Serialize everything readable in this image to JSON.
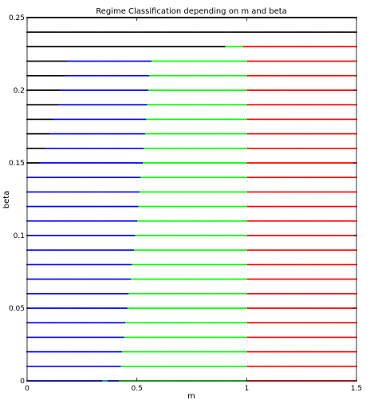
{
  "chart_data": {
    "type": "scatter",
    "title": "Regime Classification depending on m and beta",
    "xlabel": "m",
    "ylabel": "beta",
    "xlim": [
      0,
      1.5
    ],
    "ylim": [
      0,
      0.25
    ],
    "xticks": [
      "0",
      "0.5",
      "1",
      "1.5"
    ],
    "yticks": [
      "0",
      "0.05",
      "0.1",
      "0.15",
      "0.2",
      "0.25"
    ],
    "grid": false,
    "legend": "none",
    "colors": {
      "black": "#000000",
      "blue": "#0000ff",
      "cyan": "#00ffff",
      "green": "#00ff00",
      "red": "#ff0000"
    },
    "x_step": 0.005,
    "rows": [
      {
        "beta": 0.0,
        "segments": [
          [
            "black",
            0.0,
            0.0
          ],
          [
            "blue",
            0.005,
            0.34
          ],
          [
            "cyan",
            0.345,
            0.365
          ],
          [
            "blue",
            0.37,
            0.415
          ],
          [
            "green",
            0.42,
            1.0
          ],
          [
            "red",
            1.005,
            1.5
          ]
        ]
      },
      {
        "beta": 0.01,
        "segments": [
          [
            "black",
            0.0,
            0.0
          ],
          [
            "blue",
            0.005,
            0.425
          ],
          [
            "green",
            0.43,
            1.0
          ],
          [
            "red",
            1.005,
            1.5
          ]
        ]
      },
      {
        "beta": 0.02,
        "segments": [
          [
            "black",
            0.0,
            0.0
          ],
          [
            "blue",
            0.005,
            0.43
          ],
          [
            "green",
            0.435,
            1.0
          ],
          [
            "red",
            1.005,
            1.5
          ]
        ]
      },
      {
        "beta": 0.03,
        "segments": [
          [
            "black",
            0.0,
            0.0
          ],
          [
            "blue",
            0.005,
            0.44
          ],
          [
            "green",
            0.445,
            1.0
          ],
          [
            "red",
            1.005,
            1.5
          ]
        ]
      },
      {
        "beta": 0.04,
        "segments": [
          [
            "black",
            0.0,
            0.0
          ],
          [
            "blue",
            0.005,
            0.445
          ],
          [
            "green",
            0.45,
            1.0
          ],
          [
            "red",
            1.005,
            1.5
          ]
        ]
      },
      {
        "beta": 0.05,
        "segments": [
          [
            "black",
            0.0,
            0.0
          ],
          [
            "blue",
            0.005,
            0.455
          ],
          [
            "green",
            0.46,
            1.0
          ],
          [
            "red",
            1.005,
            1.5
          ]
        ]
      },
      {
        "beta": 0.06,
        "segments": [
          [
            "black",
            0.0,
            0.0
          ],
          [
            "blue",
            0.005,
            0.46
          ],
          [
            "green",
            0.465,
            1.0
          ],
          [
            "red",
            1.005,
            1.5
          ]
        ]
      },
      {
        "beta": 0.07,
        "segments": [
          [
            "black",
            0.0,
            0.0
          ],
          [
            "blue",
            0.005,
            0.47
          ],
          [
            "green",
            0.475,
            1.0
          ],
          [
            "red",
            1.005,
            1.5
          ]
        ]
      },
      {
        "beta": 0.08,
        "segments": [
          [
            "black",
            0.0,
            0.0
          ],
          [
            "blue",
            0.005,
            0.475
          ],
          [
            "green",
            0.48,
            1.0
          ],
          [
            "red",
            1.005,
            1.5
          ]
        ]
      },
      {
        "beta": 0.09,
        "segments": [
          [
            "black",
            0.0,
            0.0
          ],
          [
            "blue",
            0.005,
            0.485
          ],
          [
            "green",
            0.49,
            1.0
          ],
          [
            "red",
            1.005,
            1.5
          ]
        ]
      },
      {
        "beta": 0.1,
        "segments": [
          [
            "black",
            0.0,
            0.0
          ],
          [
            "blue",
            0.005,
            0.49
          ],
          [
            "green",
            0.495,
            1.0
          ],
          [
            "red",
            1.005,
            1.5
          ]
        ]
      },
      {
        "beta": 0.11,
        "segments": [
          [
            "black",
            0.0,
            0.0
          ],
          [
            "blue",
            0.005,
            0.5
          ],
          [
            "green",
            0.505,
            1.0
          ],
          [
            "red",
            1.005,
            1.5
          ]
        ]
      },
      {
        "beta": 0.12,
        "segments": [
          [
            "black",
            0.0,
            0.0
          ],
          [
            "blue",
            0.005,
            0.505
          ],
          [
            "green",
            0.51,
            1.0
          ],
          [
            "red",
            1.005,
            1.5
          ]
        ]
      },
      {
        "beta": 0.13,
        "segments": [
          [
            "black",
            0.0,
            0.0
          ],
          [
            "blue",
            0.005,
            0.51
          ],
          [
            "green",
            0.515,
            1.0
          ],
          [
            "red",
            1.005,
            1.5
          ]
        ]
      },
      {
        "beta": 0.14,
        "segments": [
          [
            "black",
            0.0,
            0.0
          ],
          [
            "blue",
            0.005,
            0.515
          ],
          [
            "green",
            0.52,
            1.0
          ],
          [
            "red",
            1.005,
            1.5
          ]
        ]
      },
      {
        "beta": 0.15,
        "segments": [
          [
            "black",
            0.0,
            0.055
          ],
          [
            "blue",
            0.06,
            0.525
          ],
          [
            "green",
            0.53,
            1.0
          ],
          [
            "red",
            1.005,
            1.5
          ]
        ]
      },
      {
        "beta": 0.16,
        "segments": [
          [
            "black",
            0.0,
            0.08
          ],
          [
            "blue",
            0.085,
            0.53
          ],
          [
            "green",
            0.535,
            1.0
          ],
          [
            "red",
            1.005,
            1.5
          ]
        ]
      },
      {
        "beta": 0.17,
        "segments": [
          [
            "black",
            0.0,
            0.1
          ],
          [
            "blue",
            0.105,
            0.535
          ],
          [
            "green",
            0.54,
            1.0
          ],
          [
            "red",
            1.005,
            1.5
          ]
        ]
      },
      {
        "beta": 0.18,
        "segments": [
          [
            "black",
            0.0,
            0.12
          ],
          [
            "blue",
            0.125,
            0.54
          ],
          [
            "green",
            0.545,
            1.0
          ],
          [
            "red",
            1.005,
            1.5
          ]
        ]
      },
      {
        "beta": 0.19,
        "segments": [
          [
            "black",
            0.0,
            0.14
          ],
          [
            "blue",
            0.145,
            0.545
          ],
          [
            "green",
            0.55,
            1.0
          ],
          [
            "red",
            1.005,
            1.5
          ]
        ]
      },
      {
        "beta": 0.2,
        "segments": [
          [
            "black",
            0.0,
            0.15
          ],
          [
            "blue",
            0.155,
            0.55
          ],
          [
            "green",
            0.555,
            1.0
          ],
          [
            "red",
            1.005,
            1.5
          ]
        ]
      },
      {
        "beta": 0.21,
        "segments": [
          [
            "black",
            0.0,
            0.17
          ],
          [
            "blue",
            0.175,
            0.555
          ],
          [
            "green",
            0.56,
            1.0
          ],
          [
            "red",
            1.005,
            1.5
          ]
        ]
      },
      {
        "beta": 0.22,
        "segments": [
          [
            "black",
            0.0,
            0.185
          ],
          [
            "blue",
            0.19,
            0.565
          ],
          [
            "green",
            0.57,
            1.0
          ],
          [
            "red",
            1.005,
            1.5
          ]
        ]
      },
      {
        "beta": 0.23,
        "segments": [
          [
            "black",
            0.0,
            0.9
          ],
          [
            "green",
            0.905,
            0.98
          ],
          [
            "red",
            0.985,
            1.5
          ]
        ]
      },
      {
        "beta": 0.24,
        "segments": [
          [
            "black",
            0.0,
            1.5
          ]
        ]
      },
      {
        "beta": 0.25,
        "segments": [
          [
            "black",
            0.0,
            1.5
          ]
        ]
      }
    ]
  }
}
